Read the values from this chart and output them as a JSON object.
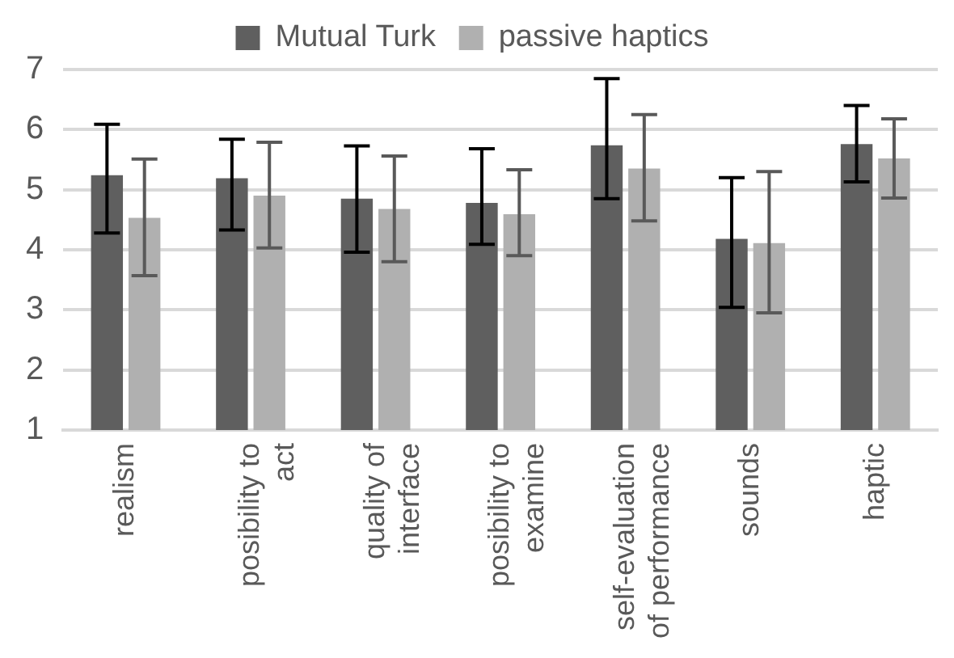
{
  "chart_data": {
    "type": "bar",
    "categories": [
      "realism",
      "posibility to act",
      "quality of interface",
      "posibility to examine",
      "self-evaluation of performance",
      "sounds",
      "haptic"
    ],
    "series": [
      {
        "name": "Mutual Turk",
        "color": "#5f5f5f",
        "values": [
          5.24,
          5.19,
          4.85,
          4.78,
          5.74,
          4.18,
          5.76
        ],
        "errors": [
          [
            4.28,
            6.09
          ],
          [
            4.33,
            5.84
          ],
          [
            3.96,
            5.73
          ],
          [
            4.09,
            5.68
          ],
          [
            4.85,
            6.85
          ],
          [
            3.04,
            5.2
          ],
          [
            5.13,
            6.4
          ]
        ]
      },
      {
        "name": "passive haptics",
        "color": "#b0b0b0",
        "values": [
          4.53,
          4.9,
          4.68,
          4.59,
          5.35,
          4.11,
          5.52
        ],
        "errors": [
          [
            3.57,
            5.51
          ],
          [
            4.03,
            5.79
          ],
          [
            3.8,
            5.56
          ],
          [
            3.9,
            5.33
          ],
          [
            4.48,
            6.25
          ],
          [
            2.95,
            5.3
          ],
          [
            4.86,
            6.18
          ]
        ]
      }
    ],
    "ylim": [
      1,
      7
    ],
    "yticks": [
      1,
      2,
      3,
      4,
      5,
      6,
      7
    ],
    "grid": "y",
    "legend": "top"
  }
}
